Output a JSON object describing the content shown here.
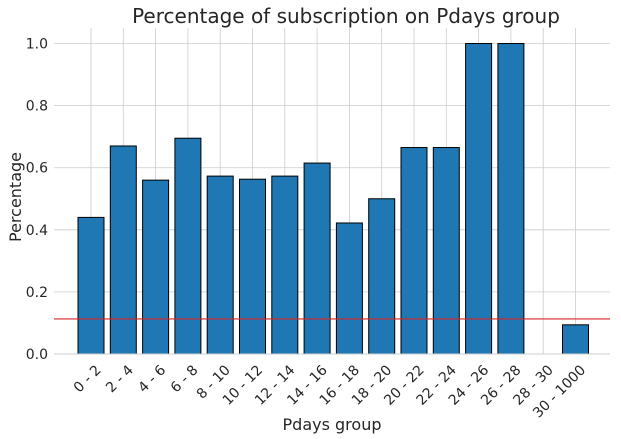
{
  "chart_data": {
    "type": "bar",
    "title": "Percentage of subscription on Pdays group",
    "xlabel": "Pdays group",
    "ylabel": "Percentage",
    "categories": [
      "0 - 2",
      "2 - 4",
      "4 - 6",
      "6 - 8",
      "8 - 10",
      "10 - 12",
      "12 - 14",
      "14 - 16",
      "16 - 18",
      "18 - 20",
      "20 - 22",
      "22 - 24",
      "24 - 26",
      "26 - 28",
      "28 - 30",
      "30 - 1000"
    ],
    "values": [
      0.44,
      0.67,
      0.56,
      0.695,
      0.573,
      0.563,
      0.573,
      0.615,
      0.422,
      0.5,
      0.665,
      0.665,
      1.0,
      1.0,
      0.0,
      0.094
    ],
    "yticks": [
      "0.0",
      "0.2",
      "0.4",
      "0.6",
      "0.8",
      "1.0"
    ],
    "ylim": [
      0,
      1.05
    ],
    "reference_line": {
      "y": 0.113,
      "color": "#d62728"
    },
    "bar_color": "#1f77b4",
    "grid": true,
    "legend": "none"
  }
}
